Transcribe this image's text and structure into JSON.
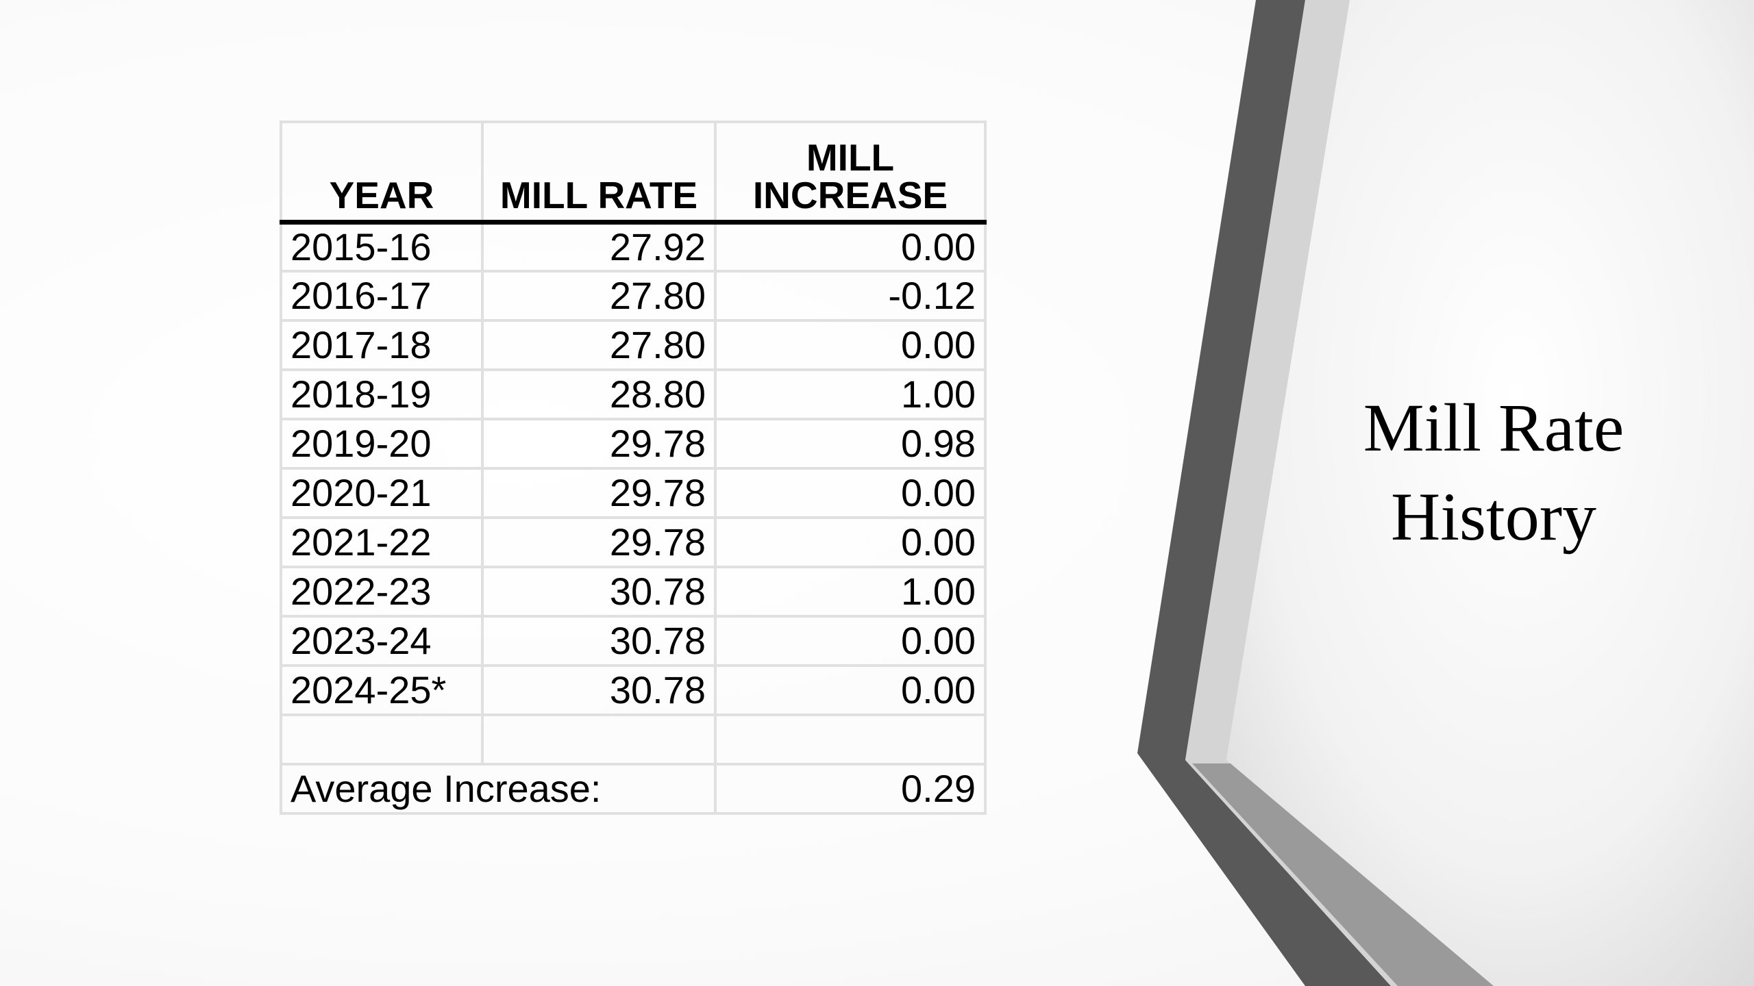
{
  "slide": {
    "title_line1": "Mill Rate",
    "title_line2": "History"
  },
  "table": {
    "headers": {
      "year": "YEAR",
      "mill_rate": "MILL RATE",
      "increase_line1": "MILL",
      "increase_line2": "INCREASE"
    },
    "rows": [
      {
        "year": "2015-16",
        "mill_rate": "27.92",
        "increase": "0.00"
      },
      {
        "year": "2016-17",
        "mill_rate": "27.80",
        "increase": "-0.12"
      },
      {
        "year": "2017-18",
        "mill_rate": "27.80",
        "increase": "0.00"
      },
      {
        "year": "2018-19",
        "mill_rate": "28.80",
        "increase": "1.00"
      },
      {
        "year": "2019-20",
        "mill_rate": "29.78",
        "increase": "0.98"
      },
      {
        "year": "2020-21",
        "mill_rate": "29.78",
        "increase": "0.00"
      },
      {
        "year": "2021-22",
        "mill_rate": "29.78",
        "increase": "0.00"
      },
      {
        "year": "2022-23",
        "mill_rate": "30.78",
        "increase": "1.00"
      },
      {
        "year": "2023-24",
        "mill_rate": "30.78",
        "increase": "0.00"
      },
      {
        "year": "2024-25*",
        "mill_rate": "30.78",
        "increase": "0.00"
      }
    ],
    "average_label": "Average Increase:",
    "average_value": "0.29"
  },
  "colors": {
    "frame_dark": "#595959",
    "frame_mid": "#9a9a9a",
    "frame_light": "#d9d9d9",
    "grid": "#e0e0e0"
  }
}
